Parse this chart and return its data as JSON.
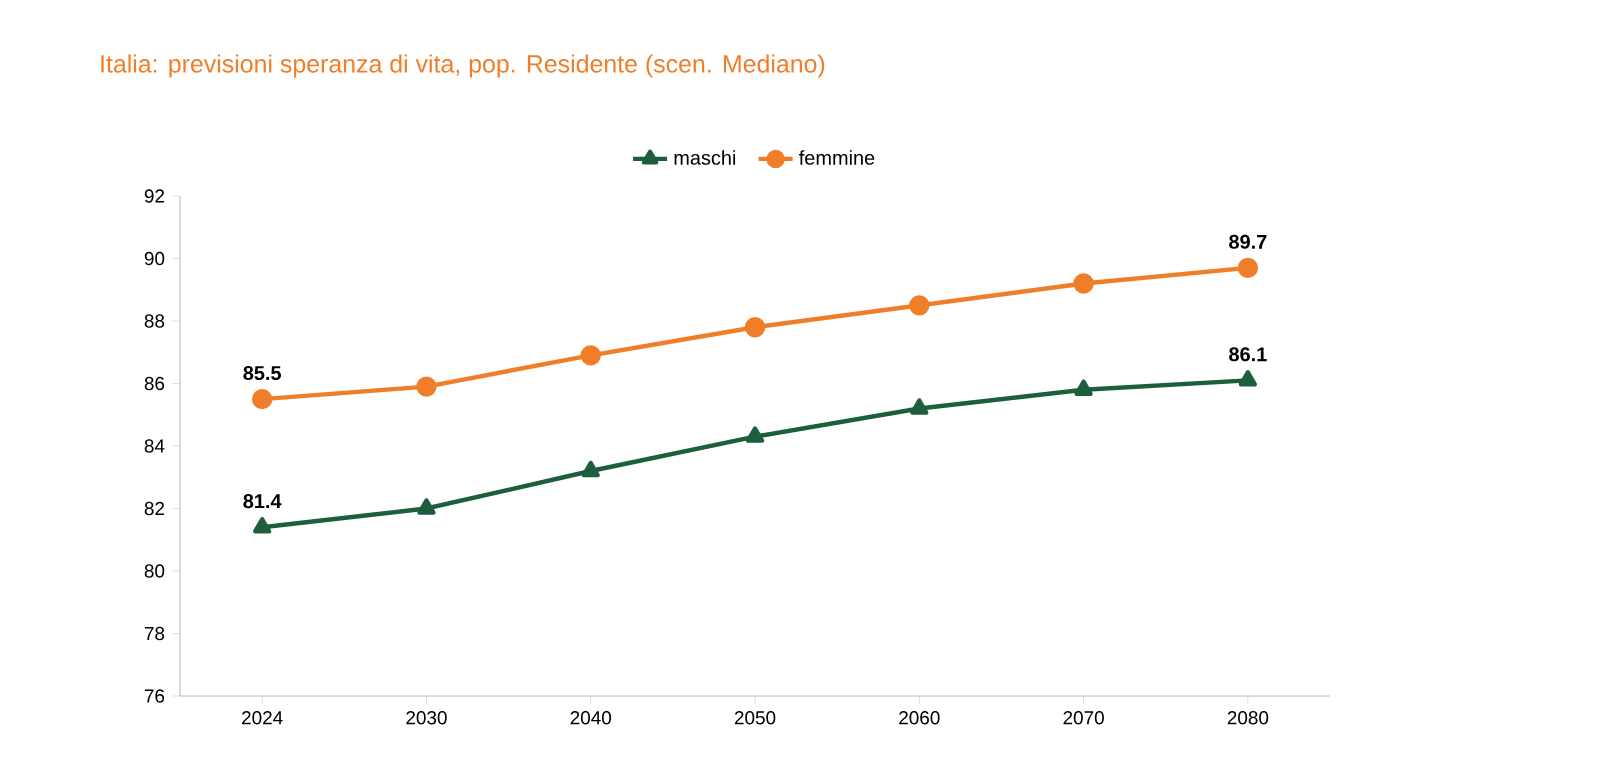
{
  "chart_data": {
    "type": "line",
    "title": "Italia: previsioni speranza di vita, pop. Residente (scen. Mediano)",
    "categories": [
      "2024",
      "2030",
      "2040",
      "2050",
      "2060",
      "2070",
      "2080"
    ],
    "series": [
      {
        "name": "maschi",
        "color": "#1d5e3c",
        "marker": "triangle",
        "values": [
          81.4,
          82.0,
          83.2,
          84.3,
          85.2,
          85.8,
          86.1
        ],
        "value_labels": [
          "81.4",
          null,
          null,
          null,
          null,
          null,
          "86.1"
        ]
      },
      {
        "name": "femmine",
        "color": "#f07d28",
        "marker": "circle",
        "values": [
          85.5,
          85.9,
          86.9,
          87.8,
          88.5,
          89.2,
          89.7
        ],
        "value_labels": [
          "85.5",
          null,
          null,
          null,
          null,
          null,
          "89.7"
        ]
      }
    ],
    "ylim": [
      76,
      92
    ],
    "yticks": [
      76,
      78,
      80,
      82,
      84,
      86,
      88,
      90,
      92
    ],
    "grid": false,
    "legend": "top",
    "line_style": "solid"
  }
}
